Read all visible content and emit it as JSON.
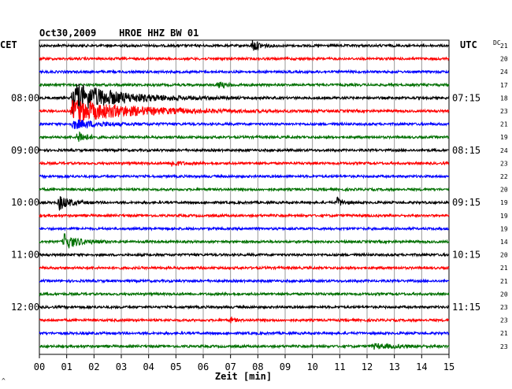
{
  "header": {
    "title": "Oct30,2009    HROE HHZ BW 01",
    "left_zone": "CET",
    "right_zone": "UTC",
    "dc_label": "DC"
  },
  "chart_data": {
    "type": "line",
    "title": "Oct30,2009    HROE HHZ BW 01",
    "xlabel": "Zeit [min]",
    "ylabel": "",
    "xlim": [
      0,
      15
    ],
    "x_ticks": [
      "00",
      "01",
      "02",
      "03",
      "04",
      "05",
      "06",
      "07",
      "08",
      "09",
      "10",
      "11",
      "12",
      "13",
      "14",
      "15"
    ],
    "grid": true,
    "left_time_labels": [
      {
        "trace": 4,
        "text": "08:00"
      },
      {
        "trace": 8,
        "text": "09:00"
      },
      {
        "trace": 12,
        "text": "10:00"
      },
      {
        "trace": 16,
        "text": "11:00"
      },
      {
        "trace": 20,
        "text": "12:00"
      }
    ],
    "right_time_labels": [
      {
        "trace": 4,
        "text": "07:15"
      },
      {
        "trace": 8,
        "text": "08:15"
      },
      {
        "trace": 12,
        "text": "09:15"
      },
      {
        "trace": 16,
        "text": "10:15"
      },
      {
        "trace": 20,
        "text": "11:15"
      }
    ],
    "trace_colors": [
      "#000000",
      "#ff0000",
      "#0000ff",
      "#007000"
    ],
    "dc_values": [
      "21",
      "20",
      "24",
      "17",
      "18",
      "23",
      "21",
      "19",
      "24",
      "23",
      "22",
      "20",
      "19",
      "19",
      "19",
      "14",
      "20",
      "21",
      "21",
      "20",
      "23",
      "23",
      "21",
      "23"
    ],
    "events": [
      {
        "trace": 0,
        "minute": 7.8,
        "amplitude": 8,
        "duration": 0.4
      },
      {
        "trace": 3,
        "minute": 6.5,
        "amplitude": 4,
        "duration": 0.5
      },
      {
        "trace": 4,
        "minute": 1.2,
        "amplitude": 20,
        "duration": 2.5
      },
      {
        "trace": 5,
        "minute": 1.2,
        "amplitude": 14,
        "duration": 3.5
      },
      {
        "trace": 6,
        "minute": 1.2,
        "amplitude": 6,
        "duration": 1.5
      },
      {
        "trace": 7,
        "minute": 1.4,
        "amplitude": 10,
        "duration": 0.4
      },
      {
        "trace": 9,
        "minute": 4.8,
        "amplitude": 4,
        "duration": 0.5
      },
      {
        "trace": 12,
        "minute": 0.7,
        "amplitude": 10,
        "duration": 0.6
      },
      {
        "trace": 12,
        "minute": 10.9,
        "amplitude": 6,
        "duration": 0.3
      },
      {
        "trace": 15,
        "minute": 0.9,
        "amplitude": 10,
        "duration": 0.8
      },
      {
        "trace": 21,
        "minute": 7.0,
        "amplitude": 4,
        "duration": 0.2
      },
      {
        "trace": 23,
        "minute": 12.2,
        "amplitude": 3,
        "duration": 1.5
      }
    ],
    "noise_amplitude": 1.5
  }
}
